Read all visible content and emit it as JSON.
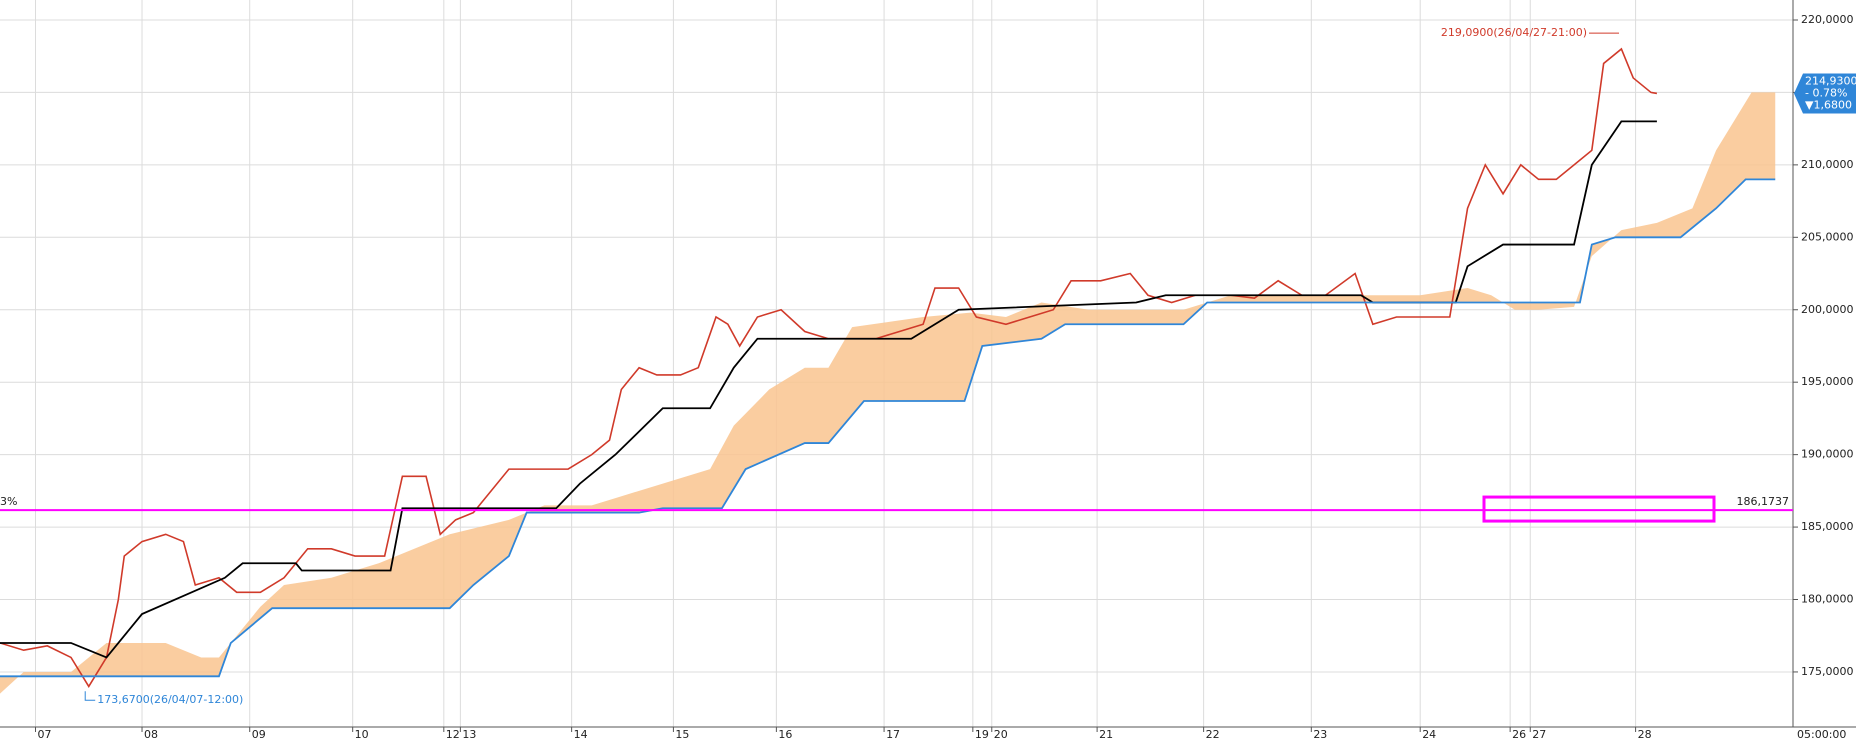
{
  "chart_data": {
    "type": "line",
    "xlim": [
      0,
      1515
    ],
    "ylim": [
      171.2,
      221.38
    ],
    "grid": true,
    "xticks": [
      {
        "value": 30,
        "label": "07"
      },
      {
        "value": 120,
        "label": "08"
      },
      {
        "value": 211,
        "label": "09"
      },
      {
        "value": 298,
        "label": "10"
      },
      {
        "value": 375,
        "label": "12"
      },
      {
        "value": 389,
        "label": "13"
      },
      {
        "value": 483,
        "label": "14"
      },
      {
        "value": 569,
        "label": "15"
      },
      {
        "value": 656,
        "label": "16"
      },
      {
        "value": 747,
        "label": "17"
      },
      {
        "value": 822,
        "label": "19"
      },
      {
        "value": 838,
        "label": "20"
      },
      {
        "value": 927,
        "label": "21"
      },
      {
        "value": 1017,
        "label": "22"
      },
      {
        "value": 1108,
        "label": "23"
      },
      {
        "value": 1200,
        "label": "24"
      },
      {
        "value": 1276,
        "label": "26"
      },
      {
        "value": 1293,
        "label": "27"
      },
      {
        "value": 1382,
        "label": "28"
      }
    ],
    "axis_end_label": "05:00:00",
    "yticks": [
      {
        "value": 175,
        "label": "175,0000"
      },
      {
        "value": 180,
        "label": "180,0000"
      },
      {
        "value": 185,
        "label": "185,0000"
      },
      {
        "value": 190,
        "label": "190,0000"
      },
      {
        "value": 195,
        "label": "195,0000"
      },
      {
        "value": 200,
        "label": "200,0000"
      },
      {
        "value": 205,
        "label": "205,0000"
      },
      {
        "value": 210,
        "label": "210,0000"
      },
      {
        "value": 215,
        "label": "215,0000"
      },
      {
        "value": 220,
        "label": "220,0000"
      }
    ],
    "series": [
      {
        "color": "#d03a2a",
        "x": [
          0,
          20,
          40,
          60,
          75,
          90,
          100,
          105,
          120,
          140,
          155,
          165,
          185,
          200,
          220,
          240,
          260,
          280,
          300,
          325,
          340,
          360,
          372,
          385,
          400,
          430,
          450,
          480,
          500,
          515,
          525,
          540,
          555,
          575,
          590,
          605,
          615,
          625,
          640,
          660,
          680,
          700,
          720,
          740,
          760,
          780,
          790,
          810,
          825,
          850,
          870,
          890,
          905,
          930,
          955,
          970,
          990,
          1010,
          1040,
          1060,
          1080,
          1100,
          1120,
          1145,
          1160,
          1180,
          1200,
          1225,
          1240,
          1255,
          1270,
          1285,
          1300,
          1315,
          1330,
          1345,
          1355,
          1370,
          1380,
          1395,
          1400
        ],
        "values": [
          177,
          176.5,
          176.8,
          176,
          174,
          176,
          180,
          183,
          184,
          184.5,
          184,
          181,
          181.5,
          180.5,
          180.5,
          181.5,
          183.5,
          183.5,
          183,
          183,
          188.5,
          188.5,
          184.5,
          185.5,
          186,
          189,
          189,
          189,
          190,
          191,
          194.5,
          196,
          195.5,
          195.5,
          196,
          199.5,
          199,
          197.5,
          199.5,
          200,
          198.5,
          198,
          198,
          198,
          198.5,
          199,
          201.5,
          201.5,
          199.5,
          199,
          199.5,
          200,
          202,
          202,
          202.5,
          201,
          200.5,
          201,
          201,
          200.8,
          202,
          201,
          201,
          202.5,
          199,
          199.5,
          199.5,
          199.5,
          207,
          210,
          208,
          210,
          209,
          209,
          210,
          211,
          217,
          218,
          216,
          215,
          214.93
        ]
      },
      {
        "color": "#000000",
        "x": [
          0,
          60,
          90,
          120,
          190,
          205,
          250,
          255,
          330,
          340,
          420,
          470,
          490,
          520,
          560,
          600,
          620,
          640,
          770,
          810,
          900,
          960,
          985,
          1150,
          1160,
          1230,
          1240,
          1270,
          1330,
          1345,
          1370,
          1400
        ],
        "values": [
          177,
          177,
          176,
          179,
          181.5,
          182.5,
          182.5,
          182,
          182,
          186.3,
          186.3,
          186.3,
          188,
          190,
          193.2,
          193.2,
          196,
          198,
          198,
          200,
          200.3,
          200.5,
          201,
          201,
          200.5,
          200.5,
          203,
          204.5,
          204.5,
          210,
          213,
          213
        ]
      },
      {
        "color": "#2f86d8",
        "x": [
          0,
          60,
          185,
          195,
          230,
          380,
          400,
          430,
          445,
          540,
          560,
          610,
          630,
          680,
          700,
          730,
          815,
          830,
          880,
          900,
          1000,
          1020,
          1235,
          1260,
          1335,
          1345,
          1365,
          1420,
          1450,
          1475,
          1500
        ],
        "values": [
          174.7,
          174.7,
          174.7,
          177,
          179.4,
          179.4,
          181,
          183,
          186,
          186,
          186.3,
          186.3,
          189,
          190.8,
          190.8,
          193.7,
          193.7,
          197.5,
          198,
          199,
          199,
          200.5,
          200.5,
          200.5,
          200.5,
          204.5,
          205,
          205,
          207,
          209,
          209
        ]
      },
      {
        "color": "#f6b77a",
        "x": [
          0,
          20,
          60,
          90,
          140,
          170,
          185,
          195,
          220,
          240,
          280,
          320,
          380,
          430,
          460,
          500,
          520,
          560,
          600,
          620,
          650,
          680,
          700,
          720,
          780,
          820,
          850,
          880,
          920,
          1000,
          1040,
          1100,
          1200,
          1240,
          1260,
          1280,
          1300,
          1330,
          1345,
          1370,
          1400,
          1430,
          1450,
          1480,
          1500
        ],
        "values": [
          173.5,
          175,
          175,
          177,
          177,
          176,
          176,
          177,
          179.5,
          181,
          181.5,
          182.5,
          184.5,
          185.5,
          186.5,
          186.5,
          187,
          188,
          189,
          192,
          194.5,
          196,
          196,
          198.8,
          199.5,
          199.8,
          199.5,
          200.5,
          200,
          200,
          201,
          201,
          201,
          201.5,
          201,
          200,
          200,
          200.2,
          203.7,
          205.5,
          206,
          207,
          211,
          215,
          215
        ]
      }
    ],
    "hline": {
      "value": 186.1737,
      "label": "186,1737",
      "color": "#ff00ff"
    },
    "left_label": "3%",
    "high": {
      "x": 1368,
      "value": 219.09,
      "label": "219,0900(26/04/27-21:00)"
    },
    "low": {
      "x": 72,
      "value": 173.67,
      "label": "173,6700(26/04/07-12:00)"
    },
    "last": {
      "value": 214.93,
      "label": "214,9300",
      "change": "- 0.78%",
      "diff": "▼1,6800"
    }
  }
}
